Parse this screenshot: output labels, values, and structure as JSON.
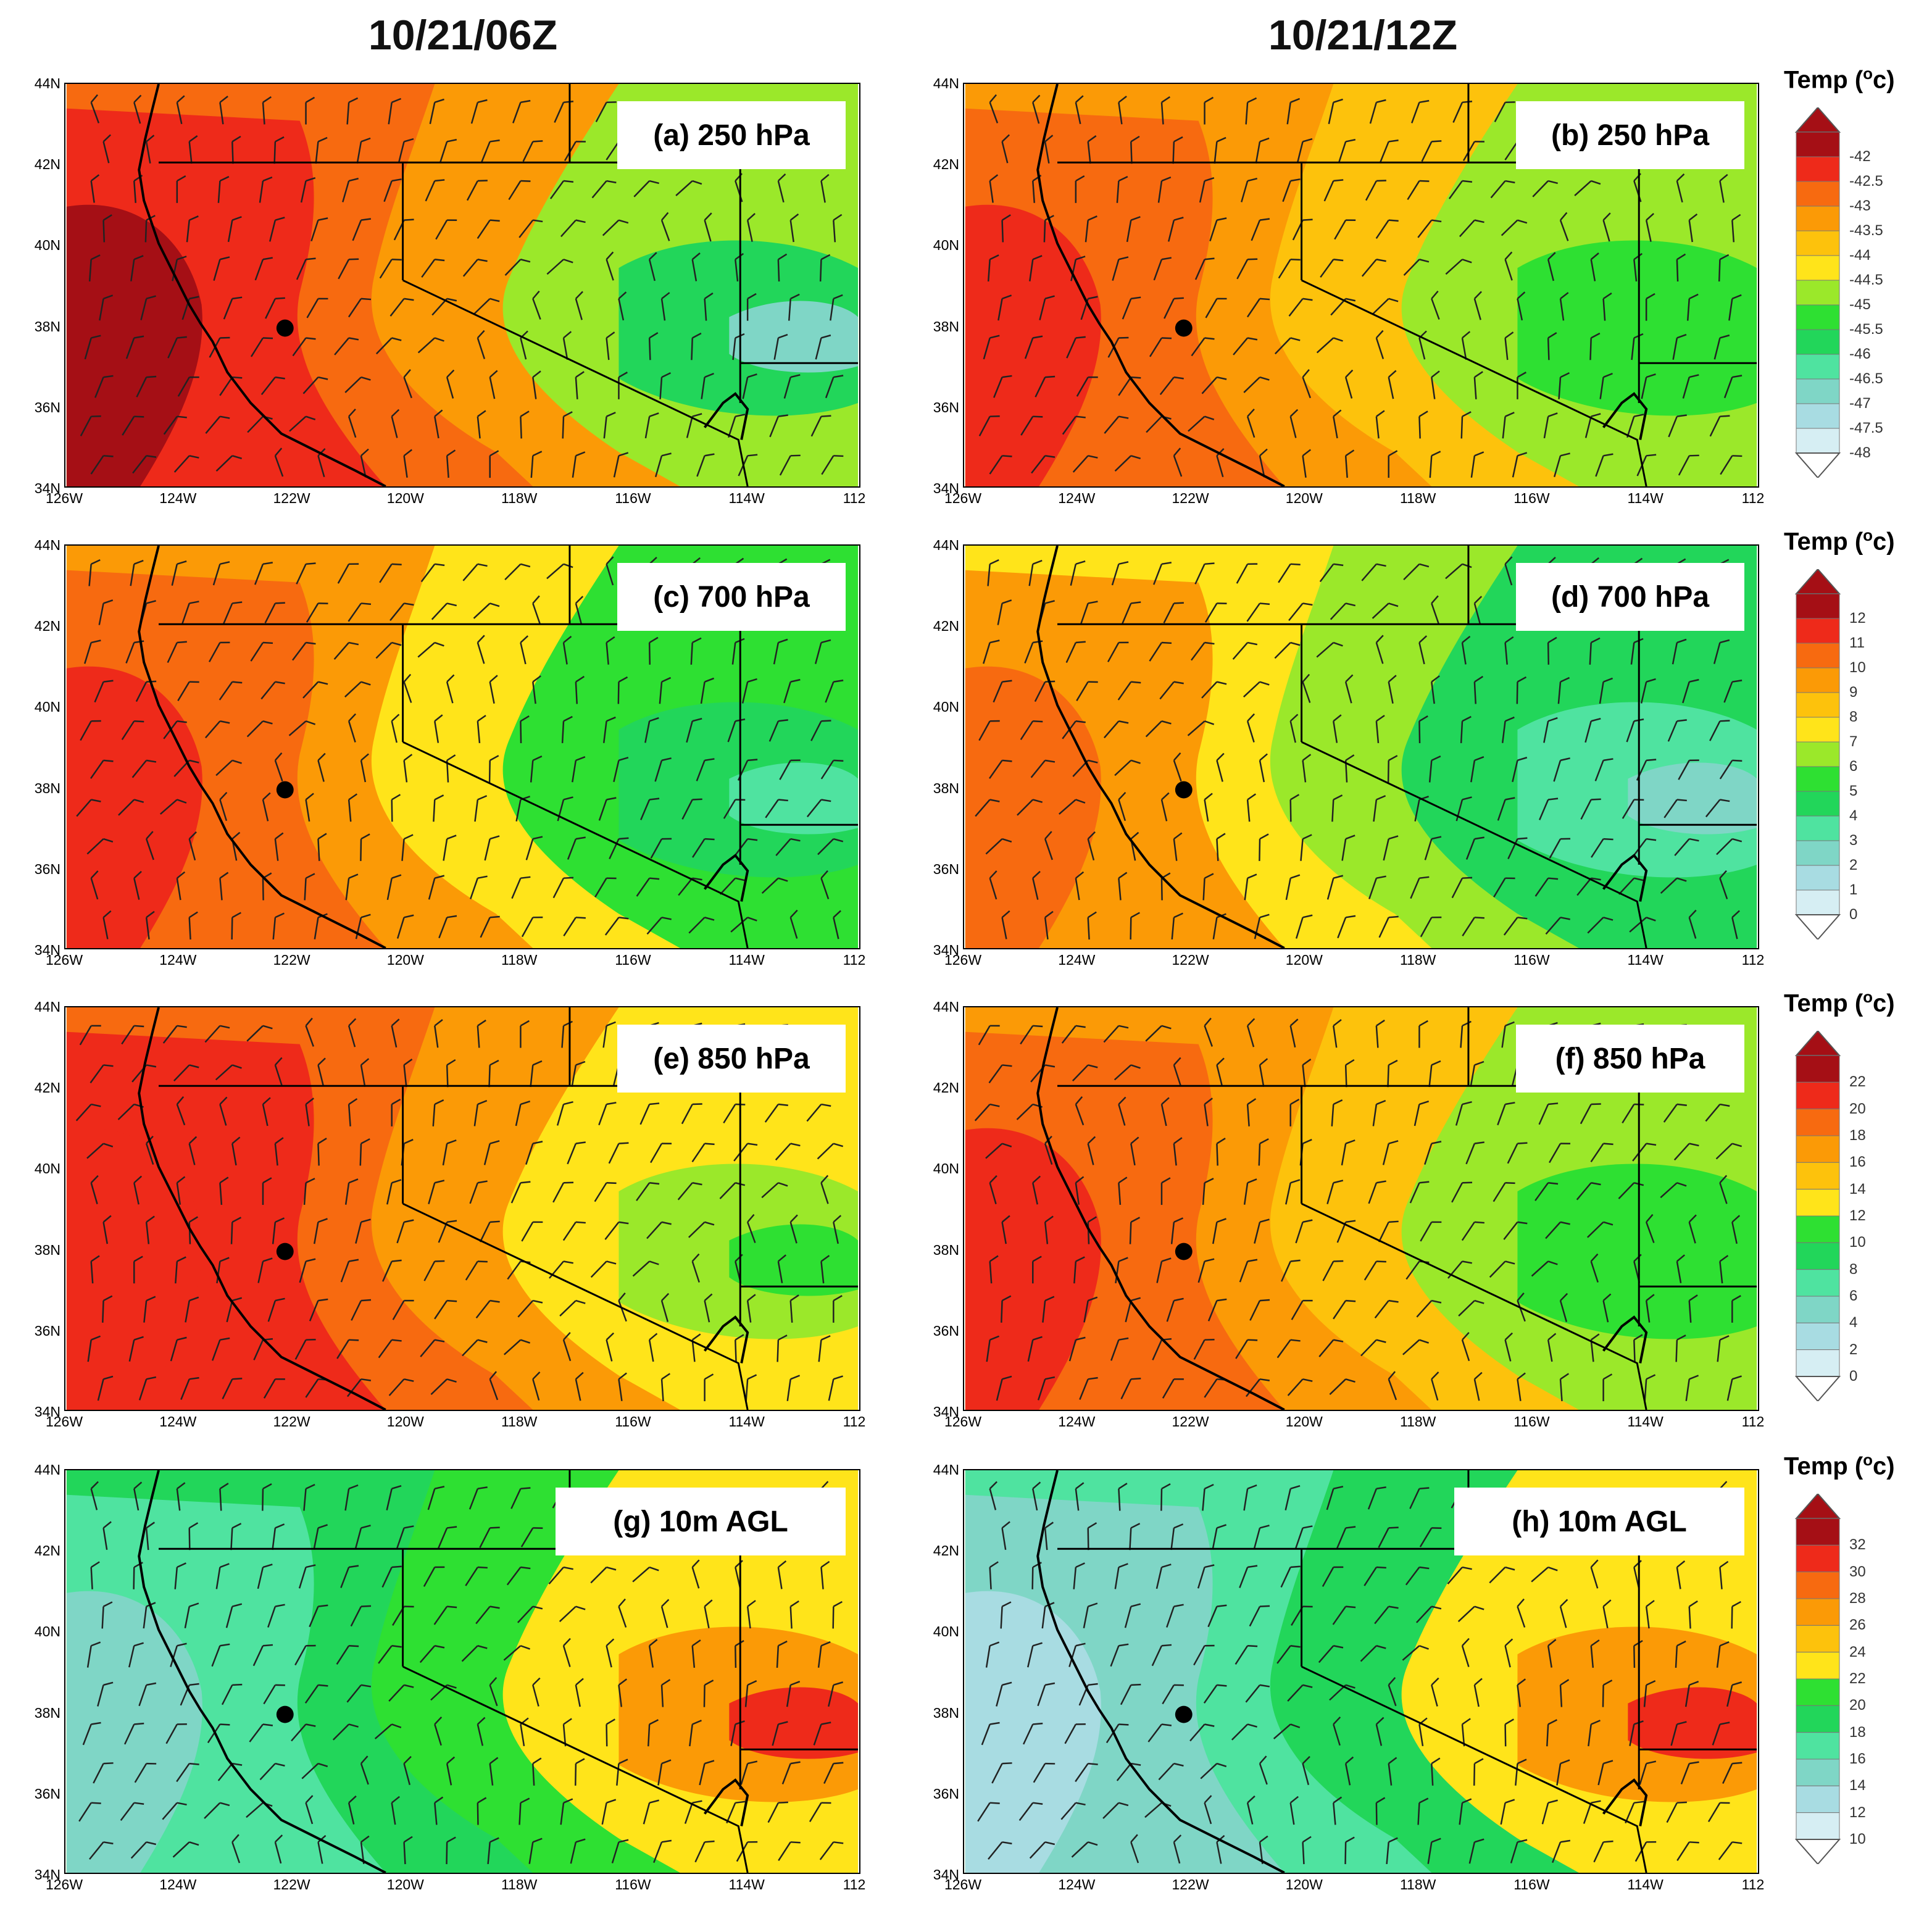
{
  "column_titles": [
    "10/21/06Z",
    "10/21/12Z"
  ],
  "lat_labels": [
    "44N",
    "42N",
    "40N",
    "38N",
    "36N",
    "34N"
  ],
  "lon_labels": [
    "126W",
    "124W",
    "122W",
    "120W",
    "118W",
    "116W",
    "114W",
    "112"
  ],
  "panels": [
    {
      "label": "(a) 250 hPa",
      "row": 0,
      "col": 0,
      "scheme": "upper06"
    },
    {
      "label": "(b) 250 hPa",
      "row": 0,
      "col": 1,
      "scheme": "upper12"
    },
    {
      "label": "(c) 700 hPa",
      "row": 1,
      "col": 0,
      "scheme": "mid06"
    },
    {
      "label": "(d) 700 hPa",
      "row": 1,
      "col": 1,
      "scheme": "mid12"
    },
    {
      "label": "(e) 850 hPa",
      "row": 2,
      "col": 0,
      "scheme": "low06"
    },
    {
      "label": "(f) 850 hPa",
      "row": 2,
      "col": 1,
      "scheme": "low12"
    },
    {
      "label": "(g) 10m AGL",
      "row": 3,
      "col": 0,
      "scheme": "sfc06"
    },
    {
      "label": "(h) 10m AGL",
      "row": 3,
      "col": 1,
      "scheme": "sfc12"
    }
  ],
  "colorbars": [
    {
      "title": "Temp (",
      "title_sup": "o",
      "title_end": "c)",
      "ticks": [
        "-42",
        "-42.5",
        "-43",
        "-43.5",
        "-44",
        "-44.5",
        "-45",
        "-45.5",
        "-46",
        "-46.5",
        "-47",
        "-47.5",
        "-48"
      ]
    },
    {
      "title": "Temp (",
      "title_sup": "o",
      "title_end": "c)",
      "ticks": [
        "12",
        "11",
        "10",
        "9",
        "8",
        "7",
        "6",
        "5",
        "4",
        "3",
        "2",
        "1",
        "0"
      ]
    },
    {
      "title": "Temp (",
      "title_sup": "o",
      "title_end": "c)",
      "ticks": [
        "22",
        "20",
        "18",
        "16",
        "14",
        "12",
        "10",
        "8",
        "6",
        "4",
        "2",
        "0"
      ]
    },
    {
      "title": "Temp (",
      "title_sup": "o",
      "title_end": "c)",
      "ticks": [
        "32",
        "30",
        "28",
        "26",
        "24",
        "22",
        "20",
        "18",
        "16",
        "14",
        "12",
        "10"
      ]
    }
  ],
  "colors": {
    "dark_red": "#a50f15",
    "red": "#ee2a1a",
    "orange_red": "#f76a10",
    "orange": "#fb9a06",
    "yellow_orange": "#fdc20c",
    "yellow": "#ffe41a",
    "yellow_green": "#9be82a",
    "green": "#2ee032",
    "green2": "#22d65a",
    "teal": "#4fe3a0",
    "aqua": "#7fd6c6",
    "light_blue": "#a8dce2",
    "pale_blue": "#d6eef3"
  }
}
